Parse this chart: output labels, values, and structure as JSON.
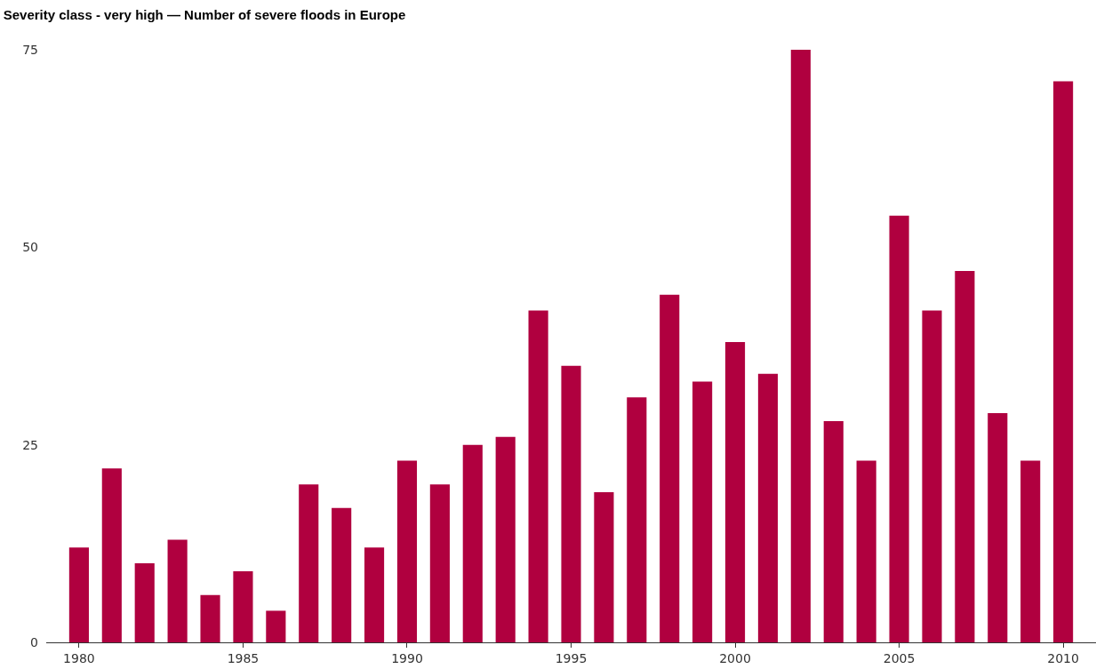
{
  "chart_data": {
    "type": "bar",
    "title": "Severity class - very high — Number of severe floods in Europe",
    "x": [
      1980,
      1981,
      1982,
      1983,
      1984,
      1985,
      1986,
      1987,
      1988,
      1989,
      1990,
      1991,
      1992,
      1993,
      1994,
      1995,
      1996,
      1997,
      1998,
      1999,
      2000,
      2001,
      2002,
      2003,
      2004,
      2005,
      2006,
      2007,
      2008,
      2009,
      2010
    ],
    "values": [
      12,
      22,
      10,
      13,
      6,
      9,
      4,
      20,
      17,
      12,
      23,
      20,
      25,
      26,
      42,
      35,
      19,
      31,
      44,
      33,
      38,
      34,
      75,
      28,
      23,
      54,
      42,
      47,
      29,
      23,
      71
    ],
    "color": "#b0003f",
    "xlim": [
      1979,
      2011
    ],
    "xticks": [
      1980,
      1985,
      1990,
      1995,
      2000,
      2005,
      2010
    ],
    "ylim": [
      0,
      75
    ],
    "yticks": [
      0,
      25,
      50,
      75
    ],
    "grid": false
  }
}
